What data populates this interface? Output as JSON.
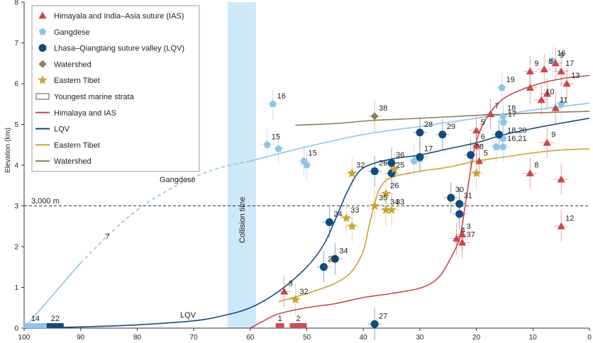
{
  "chart_data": {
    "type": "scatter",
    "xlabel": "",
    "ylabel": "Elevation (km)",
    "xlim": [
      100,
      0
    ],
    "ylim": [
      0,
      8
    ],
    "x_ticks": [
      "100",
      "90",
      "80",
      "70",
      "60",
      "50",
      "40",
      "30",
      "20",
      "10",
      "0"
    ],
    "y_ticks": [
      "0",
      "1",
      "2",
      "3",
      "4",
      "5",
      "6",
      "7",
      "8"
    ],
    "reference_line": {
      "y": 3,
      "label": "3,000 m"
    },
    "collision_band": {
      "x_from": 64,
      "x_to": 59,
      "label": "Collision time"
    },
    "annotations": {
      "gangdese_label": "Gangdese",
      "lqv_label": "LQV",
      "question_mark": "?"
    },
    "colors": {
      "ias": "#c8474c",
      "gangdese": "#8ec4e6",
      "lqv": "#124b7c",
      "watershed": "#8a7f5e",
      "eastern_tibet": "#c9a433",
      "collision": "#cde8f8",
      "marine": "#cf4d52"
    },
    "legend": [
      {
        "label": "Himayala and India–Asia suture (IAS)",
        "marker": "triangle",
        "color": "#c8474c"
      },
      {
        "label": "Gangdese",
        "marker": "pentagon",
        "color": "#8ec4e6"
      },
      {
        "label": "Lhasa–Qiangtang suture valley (LQV)",
        "marker": "circle",
        "color": "#124b7c"
      },
      {
        "label": "Watershed",
        "marker": "diamond",
        "color": "#8a7f5e"
      },
      {
        "label": "Eastern Tibet",
        "marker": "star",
        "color": "#c9a433"
      },
      {
        "label": "Youngest marine strata",
        "marker": "rect",
        "color": "#ffffff"
      },
      {
        "label": "Himalaya and IAS",
        "marker": "line",
        "color": "#c8474c"
      },
      {
        "label": "LQV",
        "marker": "line",
        "color": "#124b7c"
      },
      {
        "label": "Eastern Tibet",
        "marker": "line",
        "color": "#c9a433"
      },
      {
        "label": "Watershed",
        "marker": "line",
        "color": "#8a7f5e"
      }
    ],
    "curves": [
      {
        "name": "Gangdese",
        "color": "#8ec4e6",
        "points": [
          [
            100,
            0
          ],
          [
            90,
            1.6
          ]
        ]
      },
      {
        "name": "Gangdese (dashed)",
        "color": "#8ec4e6",
        "dashed": true,
        "points": [
          [
            90,
            1.6
          ],
          [
            85,
            2.3
          ],
          [
            80,
            2.9
          ],
          [
            75,
            3.35
          ],
          [
            70,
            3.7
          ],
          [
            65,
            3.95
          ],
          [
            60,
            4.1
          ]
        ]
      },
      {
        "name": "Gangdese",
        "color": "#8ec4e6",
        "points": [
          [
            60,
            4.1
          ],
          [
            50,
            4.45
          ],
          [
            40,
            4.75
          ],
          [
            30,
            4.95
          ],
          [
            20,
            5.15
          ],
          [
            10,
            5.35
          ],
          [
            0,
            5.52
          ]
        ]
      },
      {
        "name": "Watershed",
        "color": "#8a7f5e",
        "points": [
          [
            52,
            4.98
          ],
          [
            45,
            5.02
          ],
          [
            38,
            5.1
          ],
          [
            30,
            5.15
          ],
          [
            20,
            5.22
          ],
          [
            10,
            5.28
          ],
          [
            0,
            5.32
          ]
        ]
      },
      {
        "name": "LQV",
        "color": "#124b7c",
        "points": [
          [
            100,
            0
          ],
          [
            90,
            0.03
          ],
          [
            80,
            0.08
          ],
          [
            70,
            0.18
          ],
          [
            65,
            0.3
          ],
          [
            60,
            0.5
          ],
          [
            55,
            0.9
          ],
          [
            50,
            1.5
          ],
          [
            47,
            2.05
          ],
          [
            45,
            2.65
          ],
          [
            43,
            3.3
          ],
          [
            41,
            3.8
          ],
          [
            39,
            4.0
          ],
          [
            35,
            4.15
          ],
          [
            30,
            4.25
          ],
          [
            25,
            4.4
          ],
          [
            20,
            4.55
          ],
          [
            15,
            4.75
          ],
          [
            10,
            4.9
          ],
          [
            5,
            5.03
          ],
          [
            0,
            5.15
          ]
        ]
      },
      {
        "name": "Eastern Tibet",
        "color": "#c9a433",
        "points": [
          [
            55,
            0.65
          ],
          [
            50,
            0.85
          ],
          [
            45,
            1.1
          ],
          [
            42,
            1.4
          ],
          [
            40,
            1.9
          ],
          [
            39,
            2.5
          ],
          [
            38,
            3.05
          ],
          [
            37,
            3.45
          ],
          [
            35,
            3.7
          ],
          [
            30,
            3.85
          ],
          [
            25,
            3.95
          ],
          [
            20,
            4.1
          ],
          [
            15,
            4.2
          ],
          [
            10,
            4.3
          ],
          [
            5,
            4.37
          ],
          [
            0,
            4.4
          ]
        ]
      },
      {
        "name": "Himalaya and IAS",
        "color": "#c8474c",
        "points": [
          [
            60,
            0
          ],
          [
            58,
            0.15
          ],
          [
            55,
            0.35
          ],
          [
            50,
            0.5
          ],
          [
            45,
            0.6
          ],
          [
            40,
            0.75
          ],
          [
            35,
            0.85
          ],
          [
            30,
            0.98
          ],
          [
            27,
            1.2
          ],
          [
            25,
            1.6
          ],
          [
            23,
            2.2
          ],
          [
            22,
            3.0
          ],
          [
            21,
            3.9
          ],
          [
            20,
            4.6
          ],
          [
            18,
            5.2
          ],
          [
            15,
            5.65
          ],
          [
            10,
            5.95
          ],
          [
            5,
            6.12
          ],
          [
            0,
            6.2
          ]
        ]
      }
    ],
    "series": [
      {
        "name": "Gangdese",
        "marker": "pentagon",
        "color": "#8ec4e6",
        "points": [
          {
            "x": 56,
            "y": 5.5,
            "label": "16"
          },
          {
            "x": 57,
            "y": 4.5,
            "label": "15"
          },
          {
            "x": 55,
            "y": 4.4,
            "label": ""
          },
          {
            "x": 50.5,
            "y": 4.1,
            "label": "15"
          },
          {
            "x": 50,
            "y": 4.0,
            "label": ""
          },
          {
            "x": 31,
            "y": 4.1,
            "label": ""
          },
          {
            "x": 30,
            "y": 4.15,
            "label": ""
          },
          {
            "x": 15.5,
            "y": 5.9,
            "label": "19"
          },
          {
            "x": 15.3,
            "y": 5.2,
            "label": "18"
          },
          {
            "x": 15.2,
            "y": 5.05,
            "label": "17"
          },
          {
            "x": 15.3,
            "y": 4.65,
            "label": "18,20"
          },
          {
            "x": 15.3,
            "y": 4.45,
            "label": "16,21"
          },
          {
            "x": 16.5,
            "y": 4.45,
            "label": ""
          },
          {
            "x": 6.5,
            "y": 6.55,
            "label": "16"
          },
          {
            "x": 5,
            "y": 5.5,
            "label": ""
          }
        ]
      },
      {
        "name": "LQV",
        "marker": "circle",
        "color": "#124b7c",
        "points": [
          {
            "x": 30,
            "y": 4.8,
            "label": "28"
          },
          {
            "x": 26,
            "y": 4.75,
            "label": "29"
          },
          {
            "x": 16,
            "y": 4.75,
            "label": ""
          },
          {
            "x": 21,
            "y": 4.25,
            "label": "28"
          },
          {
            "x": 30,
            "y": 4.2,
            "label": "17"
          },
          {
            "x": 35,
            "y": 4.05,
            "label": "36"
          },
          {
            "x": 38,
            "y": 3.85,
            "label": "26"
          },
          {
            "x": 35,
            "y": 3.8,
            "label": "25"
          },
          {
            "x": 24.5,
            "y": 3.2,
            "label": "30"
          },
          {
            "x": 23,
            "y": 3.05,
            "label": "31"
          },
          {
            "x": 23,
            "y": 2.8,
            "label": ""
          },
          {
            "x": 46,
            "y": 2.6,
            "label": "24"
          },
          {
            "x": 45,
            "y": 1.7,
            "label": "34"
          },
          {
            "x": 47,
            "y": 1.5,
            "label": "23"
          },
          {
            "x": 38,
            "y": 0.1,
            "label": "27"
          }
        ]
      },
      {
        "name": "Watershed",
        "marker": "diamond",
        "color": "#8a7f5e",
        "points": [
          {
            "x": 38,
            "y": 5.2,
            "label": "38"
          }
        ]
      },
      {
        "name": "Eastern Tibet",
        "marker": "star",
        "color": "#c9a433",
        "points": [
          {
            "x": 42,
            "y": 3.8,
            "label": "32"
          },
          {
            "x": 34.5,
            "y": 3.9,
            "label": ""
          },
          {
            "x": 36,
            "y": 3.3,
            "label": "26"
          },
          {
            "x": 38,
            "y": 3.0,
            "label": "35"
          },
          {
            "x": 36,
            "y": 2.9,
            "label": "34"
          },
          {
            "x": 35,
            "y": 2.9,
            "label": "33"
          },
          {
            "x": 43,
            "y": 2.7,
            "label": "33"
          },
          {
            "x": 42,
            "y": 2.5,
            "label": ""
          },
          {
            "x": 52,
            "y": 0.7,
            "label": "32"
          },
          {
            "x": 20,
            "y": 3.8,
            "label": ""
          }
        ]
      },
      {
        "name": "Himalaya and IAS",
        "marker": "triangle",
        "color": "#c8474c",
        "points": [
          {
            "x": 54,
            "y": 0.9,
            "label": "3"
          },
          {
            "x": 22.5,
            "y": 2.3,
            "label": "3"
          },
          {
            "x": 23.5,
            "y": 2.2,
            "label": "4"
          },
          {
            "x": 22.5,
            "y": 2.1,
            "label": "37"
          },
          {
            "x": 20,
            "y": 4.85,
            "label": "5"
          },
          {
            "x": 20,
            "y": 4.5,
            "label": "6"
          },
          {
            "x": 19.5,
            "y": 4.1,
            "label": "5"
          },
          {
            "x": 17.5,
            "y": 5.25,
            "label": "7"
          },
          {
            "x": 10.5,
            "y": 6.3,
            "label": "9"
          },
          {
            "x": 10.5,
            "y": 5.9,
            "label": ""
          },
          {
            "x": 10.5,
            "y": 3.8,
            "label": "8"
          },
          {
            "x": 8.5,
            "y": 5.6,
            "label": "10"
          },
          {
            "x": 8,
            "y": 6.35,
            "label": "8"
          },
          {
            "x": 7.5,
            "y": 5.75,
            "label": ""
          },
          {
            "x": 7.5,
            "y": 4.55,
            "label": "9"
          },
          {
            "x": 6,
            "y": 5.4,
            "label": "11"
          },
          {
            "x": 6,
            "y": 6.5,
            "label": "9"
          },
          {
            "x": 5,
            "y": 6.3,
            "label": "17"
          },
          {
            "x": 4,
            "y": 6.0,
            "label": "13"
          },
          {
            "x": 5,
            "y": 3.65,
            "label": ""
          },
          {
            "x": 5,
            "y": 2.5,
            "label": "12"
          }
        ]
      }
    ],
    "marine_strata": [
      {
        "x_from": 55.5,
        "x_to": 54,
        "label": "1"
      },
      {
        "x_from": 53,
        "x_to": 50,
        "label": "2"
      },
      {
        "x_from": 100,
        "x_to": 96,
        "label": "14"
      },
      {
        "x_from": 96,
        "x_to": 93,
        "label": "22"
      }
    ]
  }
}
